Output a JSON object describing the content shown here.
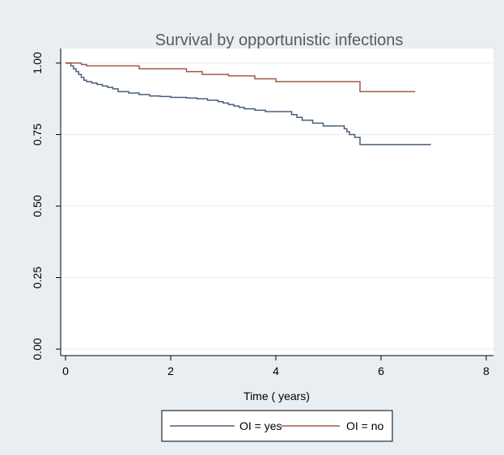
{
  "chart_data": {
    "type": "line",
    "title": "Survival by opportunistic infections",
    "xlabel": "Time ( years)",
    "ylabel": "",
    "xlim": [
      0,
      8
    ],
    "ylim": [
      0,
      1
    ],
    "xticks": [
      "0",
      "2",
      "4",
      "6",
      "8"
    ],
    "yticks": [
      "0.00",
      "0.25",
      "0.50",
      "0.75",
      "1.00"
    ],
    "grid": "horizontal",
    "legend_position": "bottom",
    "series": [
      {
        "name": "OI = yes",
        "color": "#4a5e78",
        "step": true,
        "x": [
          0,
          0.1,
          0.15,
          0.2,
          0.25,
          0.3,
          0.35,
          0.4,
          0.5,
          0.6,
          0.7,
          0.8,
          0.9,
          1.0,
          1.2,
          1.4,
          1.6,
          1.8,
          2.0,
          2.3,
          2.5,
          2.7,
          2.9,
          3.0,
          3.1,
          3.2,
          3.3,
          3.4,
          3.6,
          3.8,
          4.0,
          4.3,
          4.4,
          4.5,
          4.7,
          4.9,
          5.3,
          5.35,
          5.4,
          5.5,
          5.6,
          6.0,
          6.5,
          6.95
        ],
        "y": [
          1.0,
          0.99,
          0.98,
          0.97,
          0.96,
          0.95,
          0.94,
          0.935,
          0.93,
          0.925,
          0.92,
          0.915,
          0.91,
          0.9,
          0.895,
          0.89,
          0.885,
          0.883,
          0.88,
          0.878,
          0.875,
          0.87,
          0.865,
          0.86,
          0.855,
          0.85,
          0.845,
          0.84,
          0.835,
          0.83,
          0.83,
          0.82,
          0.81,
          0.8,
          0.79,
          0.78,
          0.77,
          0.76,
          0.75,
          0.74,
          0.715,
          0.715,
          0.715,
          0.715
        ]
      },
      {
        "name": "OI = no",
        "color": "#a0584a",
        "step": true,
        "x": [
          0,
          0.3,
          0.4,
          1.4,
          2.3,
          2.6,
          3.1,
          3.6,
          4.0,
          5.6,
          6.65
        ],
        "y": [
          1.0,
          0.995,
          0.99,
          0.98,
          0.97,
          0.96,
          0.955,
          0.945,
          0.935,
          0.9,
          0.9
        ]
      }
    ]
  },
  "colors": {
    "panel_background": "#e8eef2",
    "plot_background": "#ffffff",
    "grid": "#e6edf1",
    "axis": "#000000"
  }
}
